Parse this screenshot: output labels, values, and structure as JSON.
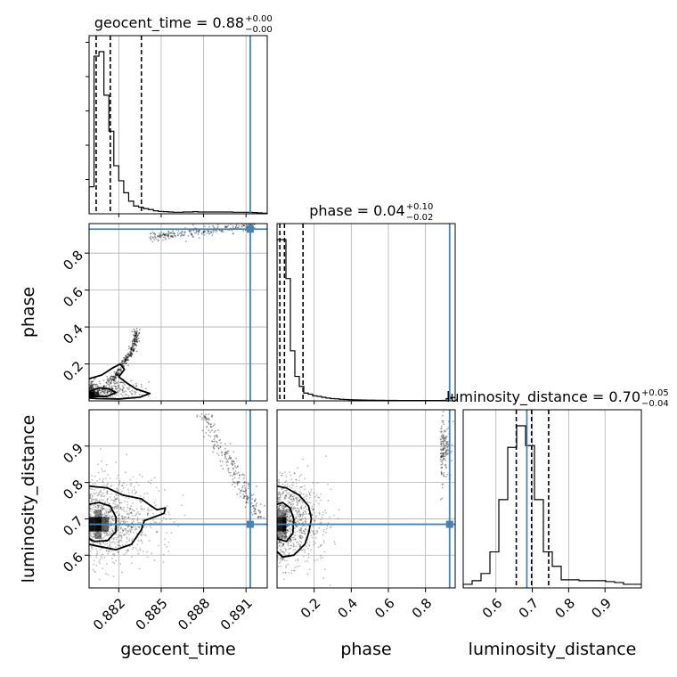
{
  "chart_data": {
    "type": "corner",
    "truth_color": "#4682b4",
    "hist_color": "#000000",
    "grid": true,
    "parameters": [
      {
        "name": "geocent_time",
        "axis_label": "geocent_time",
        "title": "geocent_time = 0.88",
        "title_plus": "+0.00",
        "title_minus": "−0.00",
        "range": [
          0.8799,
          0.8925
        ],
        "ticks": [
          0.882,
          0.885,
          0.888,
          0.891
        ],
        "tick_labels": [
          "0.882",
          "0.885",
          "0.888",
          "0.891"
        ],
        "truth": 0.8913,
        "quantiles": [
          0.8804,
          0.8814,
          0.8836
        ],
        "hist_edges": [
          0.8799,
          0.88025,
          0.8806,
          0.88095,
          0.8813,
          0.88165,
          0.882,
          0.88235,
          0.8827,
          0.88305,
          0.8834,
          0.88375,
          0.8841,
          0.88445,
          0.8848,
          0.88515,
          0.8855,
          0.88585,
          0.8862,
          0.88655,
          0.8869,
          0.88725,
          0.8876,
          0.88795,
          0.8883,
          0.88865,
          0.889,
          0.88935,
          0.8897,
          0.89005,
          0.8904,
          0.89075,
          0.8911,
          0.89145,
          0.8918,
          0.89215,
          0.8925
        ],
        "hist_counts": [
          90,
          525,
          540,
          395,
          275,
          160,
          110,
          70,
          42,
          26,
          22,
          17,
          14,
          10,
          8,
          7,
          6,
          5,
          5,
          6,
          6,
          7,
          6,
          6,
          6,
          6,
          6,
          6,
          6,
          5,
          5,
          5,
          5,
          4,
          3,
          2
        ]
      },
      {
        "name": "phase",
        "axis_label": "phase",
        "title": "phase = 0.04",
        "title_plus": "+0.10",
        "title_minus": "−0.02",
        "range": [
          0.0,
          0.96
        ],
        "ticks": [
          0.2,
          0.4,
          0.6,
          0.8
        ],
        "tick_labels": [
          "0.2",
          "0.4",
          "0.6",
          "0.8"
        ],
        "truth": 0.93,
        "quantiles": [
          0.015,
          0.04,
          0.14
        ],
        "hist_edges": [
          0.0,
          0.024,
          0.048,
          0.072,
          0.096,
          0.12,
          0.144,
          0.168,
          0.192,
          0.216,
          0.24,
          0.264,
          0.288,
          0.312,
          0.336,
          0.36,
          0.384,
          0.408,
          0.432,
          0.456,
          0.48,
          0.504,
          0.528,
          0.552,
          0.576,
          0.6,
          0.624,
          0.648,
          0.672,
          0.696,
          0.72,
          0.744,
          0.768,
          0.792,
          0.816,
          0.84,
          0.864,
          0.888,
          0.912,
          0.936,
          0.96
        ],
        "hist_counts": [
          1450,
          1450,
          1100,
          450,
          220,
          130,
          70,
          60,
          45,
          40,
          32,
          25,
          20,
          18,
          14,
          12,
          10,
          9,
          8,
          7,
          6,
          6,
          5,
          5,
          4,
          4,
          4,
          3,
          3,
          3,
          3,
          3,
          3,
          3,
          3,
          3,
          3,
          4,
          20,
          30
        ]
      },
      {
        "name": "luminosity_distance",
        "axis_label": "luminosity_distance",
        "title": "luminosity_distance = 0.70",
        "title_plus": "+0.05",
        "title_minus": "−0.04",
        "range": [
          0.51,
          1.0
        ],
        "ticks": [
          0.6,
          0.7,
          0.8,
          0.9
        ],
        "tick_labels": [
          "0.6",
          "0.7",
          "0.8",
          "0.9"
        ],
        "truth": 0.685,
        "quantiles": [
          0.656,
          0.698,
          0.745
        ],
        "hist_edges": [
          0.51,
          0.5345,
          0.559,
          0.5835,
          0.608,
          0.6325,
          0.657,
          0.6815,
          0.706,
          0.7305,
          0.755,
          0.7795,
          0.804,
          0.8285,
          0.853,
          0.8775,
          0.902,
          0.9265,
          0.951,
          0.9755,
          1.0
        ],
        "hist_counts": [
          20,
          40,
          80,
          200,
          490,
          780,
          900,
          790,
          490,
          200,
          120,
          45,
          45,
          40,
          40,
          40,
          35,
          30,
          20,
          20
        ]
      }
    ],
    "panels_2d": [
      {
        "x": "geocent_time",
        "y": "phase",
        "density_blocks": [
          {
            "x": [
              0.8799,
              0.8803
            ],
            "y": [
              0.02,
              0.05
            ],
            "level": 1.0
          },
          {
            "x": [
              0.8803,
              0.8806
            ],
            "y": [
              0.02,
              0.05
            ],
            "level": 0.75
          },
          {
            "x": [
              0.8799,
              0.8803
            ],
            "y": [
              0.05,
              0.07
            ],
            "level": 0.3
          }
        ],
        "sample_clusters": [
          {
            "x": [
              0.8799,
              0.8845
            ],
            "y": [
              0.0,
              0.12
            ],
            "n": 320,
            "alpha": 0.35
          },
          {
            "x": [
              0.8806,
              0.8832
            ],
            "y": [
              0.1,
              0.38
            ],
            "n": 240,
            "alpha": 0.45,
            "arc": true
          },
          {
            "x": [
              0.8842,
              0.8918
            ],
            "y": [
              0.86,
              0.95
            ],
            "n": 260,
            "alpha": 0.35,
            "arc_top": true
          }
        ],
        "contours": [
          [
            [
              0.8799,
              0.05
            ],
            [
              0.8806,
              0.07
            ],
            [
              0.8813,
              0.065
            ],
            [
              0.8818,
              0.045
            ],
            [
              0.8812,
              0.025
            ],
            [
              0.8799,
              0.022
            ]
          ],
          [
            [
              0.8799,
              0.12
            ],
            [
              0.8808,
              0.14
            ],
            [
              0.8815,
              0.175
            ],
            [
              0.8821,
              0.2
            ],
            [
              0.8824,
              0.17
            ],
            [
              0.882,
              0.13
            ],
            [
              0.8826,
              0.095
            ],
            [
              0.8832,
              0.065
            ],
            [
              0.8842,
              0.04
            ],
            [
              0.8835,
              0.02
            ],
            [
              0.882,
              0.01
            ],
            [
              0.8805,
              0.012
            ],
            [
              0.8799,
              0.015
            ]
          ]
        ]
      },
      {
        "x": "geocent_time",
        "y": "luminosity_distance",
        "density_blocks": [
          {
            "x": [
              0.8799,
              0.8803
            ],
            "y": [
              0.665,
              0.705
            ],
            "level": 0.9
          },
          {
            "x": [
              0.8803,
              0.8808
            ],
            "y": [
              0.665,
              0.705
            ],
            "level": 0.95
          },
          {
            "x": [
              0.8808,
              0.8813
            ],
            "y": [
              0.665,
              0.705
            ],
            "level": 0.6
          },
          {
            "x": [
              0.8803,
              0.8808
            ],
            "y": [
              0.705,
              0.725
            ],
            "level": 0.45
          },
          {
            "x": [
              0.8803,
              0.8808
            ],
            "y": [
              0.645,
              0.665
            ],
            "level": 0.45
          }
        ],
        "sample_clusters": [
          {
            "x": [
              0.8799,
              0.8862
            ],
            "y": [
              0.57,
              0.82
            ],
            "n": 900,
            "alpha": 0.25
          },
          {
            "x": [
              0.8875,
              0.892
            ],
            "y": [
              0.7,
              0.99
            ],
            "n": 260,
            "alpha": 0.35,
            "arc_right": true
          }
        ],
        "contours": [
          [
            [
              0.8799,
              0.74
            ],
            [
              0.8806,
              0.745
            ],
            [
              0.8814,
              0.735
            ],
            [
              0.8818,
              0.705
            ],
            [
              0.8818,
              0.665
            ],
            [
              0.8812,
              0.64
            ],
            [
              0.8803,
              0.638
            ],
            [
              0.8799,
              0.645
            ]
          ],
          [
            [
              0.8799,
              0.79
            ],
            [
              0.8812,
              0.785
            ],
            [
              0.8823,
              0.765
            ],
            [
              0.8836,
              0.755
            ],
            [
              0.8843,
              0.735
            ],
            [
              0.8847,
              0.725
            ],
            [
              0.8853,
              0.73
            ],
            [
              0.8852,
              0.715
            ],
            [
              0.8838,
              0.695
            ],
            [
              0.8836,
              0.67
            ],
            [
              0.8829,
              0.63
            ],
            [
              0.8818,
              0.615
            ],
            [
              0.8805,
              0.625
            ],
            [
              0.8799,
              0.63
            ]
          ]
        ]
      },
      {
        "x": "phase",
        "y": "luminosity_distance",
        "density_blocks": [
          {
            "x": [
              0.0,
              0.025
            ],
            "y": [
              0.665,
              0.705
            ],
            "level": 0.85
          },
          {
            "x": [
              0.025,
              0.05
            ],
            "y": [
              0.665,
              0.705
            ],
            "level": 0.95
          },
          {
            "x": [
              0.0,
              0.05
            ],
            "y": [
              0.705,
              0.725
            ],
            "level": 0.35
          },
          {
            "x": [
              0.0,
              0.05
            ],
            "y": [
              0.645,
              0.665
            ],
            "level": 0.35
          }
        ],
        "sample_clusters": [
          {
            "x": [
              0.0,
              0.32
            ],
            "y": [
              0.56,
              0.82
            ],
            "n": 900,
            "alpha": 0.25
          },
          {
            "x": [
              0.88,
              0.96
            ],
            "y": [
              0.8,
              0.99
            ],
            "n": 160,
            "alpha": 0.35
          }
        ],
        "contours": [
          [
            [
              0.0,
              0.74
            ],
            [
              0.03,
              0.745
            ],
            [
              0.07,
              0.73
            ],
            [
              0.09,
              0.7
            ],
            [
              0.085,
              0.66
            ],
            [
              0.05,
              0.638
            ],
            [
              0.0,
              0.645
            ]
          ],
          [
            [
              0.0,
              0.79
            ],
            [
              0.05,
              0.785
            ],
            [
              0.12,
              0.765
            ],
            [
              0.17,
              0.735
            ],
            [
              0.185,
              0.7
            ],
            [
              0.17,
              0.66
            ],
            [
              0.15,
              0.63
            ],
            [
              0.09,
              0.6
            ],
            [
              0.03,
              0.595
            ],
            [
              0.0,
              0.61
            ]
          ]
        ]
      }
    ]
  }
}
